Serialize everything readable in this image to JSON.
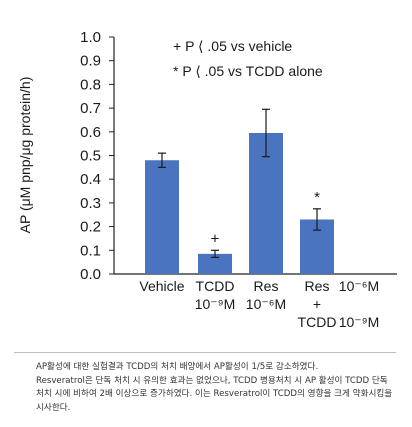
{
  "chart_data": {
    "type": "bar",
    "ylabel": "AP (μM pnp/μg protein/h)",
    "ylim": [
      0,
      1.0
    ],
    "yticks": [
      "0.0",
      "0.1",
      "0.2",
      "0.3",
      "0.4",
      "0.5",
      "0.6",
      "0.7",
      "0.8",
      "0.9",
      "1.0"
    ],
    "categories": [
      {
        "lines": [
          "Vehicle"
        ]
      },
      {
        "lines": [
          "TCDD",
          "10⁻⁹M"
        ]
      },
      {
        "lines": [
          "Res",
          "10⁻⁶M"
        ]
      },
      {
        "lines": [
          "Res",
          "+",
          "TCDD"
        ]
      },
      {
        "lines": [
          "10⁻⁶M",
          "",
          "10⁻⁹M"
        ]
      }
    ],
    "values": [
      0.48,
      0.085,
      0.595,
      0.23,
      null
    ],
    "errors": [
      0.03,
      0.015,
      0.1,
      0.045,
      null
    ],
    "markers": [
      "",
      "+",
      "",
      "*",
      ""
    ],
    "bar_color": "#4a74bf",
    "legend": [
      "+ P ⟨ .05 vs vehicle",
      "* P ⟨ .05 vs TCDD alone"
    ]
  },
  "caption": [
    "AP활성에 대한 실험결과 TCDD의 처치 배양에서 AP활성이 1/5로 감소하였다.",
    "Resveratrol은 단독 처치 시 유의한 효과는 없었으나, TCDD 병용처치 시 AP 활성이 TCDD 단독 처치 시에 비하여 2배 이상으로 증가하였다. 이는 Resveratrol이 TCDD의 영향을 크게 약화시킴을 시사한다."
  ]
}
